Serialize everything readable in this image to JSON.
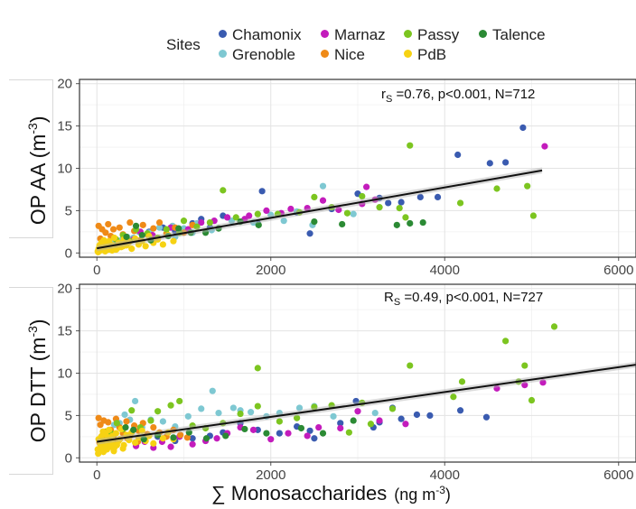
{
  "legend": {
    "title": "Sites",
    "items": [
      {
        "name": "Chamonix",
        "color": "#3a5bb0"
      },
      {
        "name": "Grenoble",
        "color": "#7ec8d2"
      },
      {
        "name": "Marnaz",
        "color": "#c31cbc"
      },
      {
        "name": "Nice",
        "color": "#ef8a17"
      },
      {
        "name": "Passy",
        "color": "#7cc520"
      },
      {
        "name": "PdB",
        "color": "#f6d213"
      },
      {
        "name": "Talence",
        "color": "#2b8a34"
      }
    ]
  },
  "chart_data": [
    {
      "type": "scatter",
      "panel": "top",
      "ylabel_main": "OP AA (m",
      "ylabel_sup": "-3",
      "ylabel_end": ")",
      "xlim": [
        -200,
        6200
      ],
      "ylim": [
        -0.5,
        20.5
      ],
      "xticks": [
        0,
        2000,
        4000,
        6000
      ],
      "yticks": [
        0,
        5,
        10,
        15,
        20
      ],
      "grid": true,
      "annotation": {
        "prefix": "r",
        "sub": "S",
        "text": " =0.76, p<0.001, N=712"
      },
      "fit_line": {
        "x": [
          0,
          5120
        ],
        "y": [
          0.55,
          9.75
        ]
      },
      "series": [
        {
          "name": "Chamonix",
          "x": [
            4900,
            4700,
            4520,
            4150,
            3920,
            3720,
            3500,
            3350,
            3250,
            3000,
            2700,
            2450,
            2300,
            1900,
            1850,
            1450,
            1300,
            1200,
            1100,
            900,
            760,
            600
          ],
          "y": [
            14.8,
            10.7,
            10.6,
            11.6,
            6.6,
            6.6,
            6.0,
            5.9,
            6.5,
            7.0,
            5.2,
            2.3,
            4.8,
            7.3,
            3.5,
            4.4,
            3.0,
            4.0,
            3.5,
            2.6,
            3.0,
            2.5
          ]
        },
        {
          "name": "Grenoble",
          "x": [
            2950,
            2600,
            2480,
            2300,
            2150,
            2000,
            1800,
            1550,
            1320,
            1150,
            1000,
            870,
            720,
            600,
            480,
            420,
            350,
            280,
            200,
            150,
            100,
            50,
            900,
            1100
          ],
          "y": [
            4.6,
            7.9,
            3.3,
            4.9,
            3.8,
            4.5,
            3.6,
            3.8,
            2.7,
            3.5,
            2.9,
            3.2,
            3.0,
            2.4,
            2.5,
            1.8,
            1.9,
            1.5,
            1.2,
            1.1,
            0.9,
            0.7,
            1.9,
            2.4
          ]
        },
        {
          "name": "Marnaz",
          "x": [
            5150,
            3200,
            3100,
            3050,
            2780,
            2600,
            2420,
            2230,
            2120,
            1950,
            1750,
            1700,
            1500,
            1350,
            1200,
            1050,
            850,
            640,
            500,
            420,
            300
          ],
          "y": [
            12.6,
            6.3,
            7.8,
            5.8,
            5.1,
            6.2,
            5.3,
            5.2,
            4.7,
            5.0,
            4.4,
            4.0,
            4.2,
            3.8,
            3.6,
            2.8,
            3.0,
            2.1,
            2.5,
            1.6,
            1.2
          ]
        },
        {
          "name": "Nice",
          "x": [
            20,
            40,
            60,
            80,
            100,
            130,
            160,
            190,
            220,
            260,
            300,
            340,
            380,
            430,
            480,
            530,
            580,
            650,
            720,
            800,
            900,
            1000,
            1100,
            60,
            120,
            240,
            360,
            500,
            700
          ],
          "y": [
            3.2,
            1.7,
            2.8,
            1.3,
            2.4,
            3.4,
            2.0,
            2.8,
            1.6,
            3.0,
            2.2,
            1.9,
            3.6,
            2.6,
            1.4,
            3.3,
            2.2,
            2.9,
            3.6,
            2.3,
            3.0,
            2.4,
            3.3,
            0.8,
            1.0,
            0.9,
            1.2,
            1.5,
            1.8
          ]
        },
        {
          "name": "Passy",
          "x": [
            3600,
            4950,
            5020,
            4600,
            4180,
            3550,
            3480,
            3250,
            3050,
            2880,
            2700,
            2500,
            2330,
            2080,
            1850,
            1600,
            1450,
            1300,
            1150,
            1000,
            950,
            800,
            700,
            580,
            450,
            380,
            300,
            220,
            160
          ],
          "y": [
            12.7,
            7.9,
            4.4,
            7.6,
            5.9,
            4.2,
            5.3,
            5.4,
            6.7,
            4.7,
            5.4,
            6.6,
            4.8,
            4.6,
            4.6,
            4.2,
            7.4,
            3.6,
            3.1,
            3.8,
            2.4,
            2.8,
            1.8,
            2.3,
            2.8,
            1.4,
            2.1,
            1.6,
            0.9
          ]
        },
        {
          "name": "PdB",
          "x": [
            10,
            20,
            30,
            40,
            50,
            60,
            70,
            80,
            90,
            100,
            110,
            120,
            140,
            160,
            180,
            200,
            220,
            250,
            280,
            310,
            340,
            370,
            400,
            440,
            480,
            520,
            560,
            600,
            650,
            700,
            760,
            820,
            880,
            15,
            35,
            55,
            75,
            95,
            115,
            135,
            155,
            175,
            195,
            230,
            265,
            300
          ],
          "y": [
            0.2,
            0.5,
            0.9,
            0.3,
            1.2,
            0.7,
            0.4,
            1.5,
            0.8,
            0.3,
            1.1,
            0.6,
            1.4,
            0.5,
            0.9,
            1.8,
            0.4,
            1.2,
            0.7,
            1.6,
            0.9,
            1.3,
            0.5,
            1.7,
            1.0,
            1.4,
            0.8,
            2.0,
            1.2,
            1.6,
            1.0,
            2.1,
            1.4,
            0.1,
            0.3,
            0.6,
            1.0,
            0.2,
            0.8,
            0.4,
            1.0,
            0.3,
            0.7,
            0.5,
            1.1,
            0.8
          ]
        },
        {
          "name": "Talence",
          "x": [
            3750,
            3600,
            3450,
            2820,
            2500,
            1860,
            1650,
            1400,
            1250,
            1080,
            940,
            820,
            620,
            520,
            450,
            340
          ],
          "y": [
            3.6,
            3.5,
            3.3,
            3.4,
            3.7,
            3.3,
            3.7,
            2.9,
            2.4,
            2.4,
            2.9,
            2.0,
            1.5,
            2.1,
            3.2,
            1.9
          ]
        }
      ]
    },
    {
      "type": "scatter",
      "panel": "bottom",
      "ylabel_main": "OP DTT (m",
      "ylabel_sup": "-3",
      "ylabel_end": ")",
      "xlabel_main": "∑ Monosaccharides",
      "xlabel_unit_main": "(ng m",
      "xlabel_unit_sup": "-3",
      "xlabel_unit_end": ")",
      "xlim": [
        -200,
        6200
      ],
      "ylim": [
        -0.5,
        20.5
      ],
      "xticks": [
        0,
        2000,
        4000,
        6000
      ],
      "yticks": [
        0,
        5,
        10,
        15,
        20
      ],
      "grid": true,
      "annotation": {
        "prefix": "R",
        "sub": "S",
        "text": " =0.49, p<0.001, N=727"
      },
      "fit_line": {
        "x": [
          0,
          6200
        ],
        "y": [
          1.9,
          11.0
        ]
      },
      "series": [
        {
          "name": "Chamonix",
          "x": [
            4480,
            4180,
            3830,
            3680,
            3500,
            3400,
            3250,
            3180,
            2980,
            2800,
            2500,
            2450,
            2300,
            2100,
            1850,
            1650,
            1450,
            1300,
            1100,
            900,
            700
          ],
          "y": [
            4.8,
            5.6,
            5.0,
            5.1,
            4.6,
            5.9,
            4.2,
            3.6,
            6.7,
            4.1,
            2.3,
            3.2,
            3.7,
            2.9,
            3.3,
            4.1,
            3.0,
            2.6,
            2.3,
            2.0,
            2.5
          ]
        },
        {
          "name": "Grenoble",
          "x": [
            3200,
            2720,
            2500,
            2330,
            2100,
            1950,
            1770,
            1570,
            1330,
            1200,
            1050,
            900,
            760,
            620,
            520,
            440,
            380,
            320,
            260,
            200,
            150,
            100,
            50,
            1400,
            1650
          ],
          "y": [
            5.3,
            4.9,
            6.1,
            5.9,
            5.3,
            4.9,
            5.4,
            5.9,
            7.9,
            5.8,
            4.9,
            3.7,
            4.3,
            4.5,
            3.6,
            6.7,
            4.5,
            5.1,
            4.1,
            3.9,
            3.1,
            2.6,
            2.3,
            5.3,
            5.6
          ]
        },
        {
          "name": "Marnaz",
          "x": [
            5130,
            4920,
            4600,
            3550,
            3250,
            3000,
            2800,
            2550,
            2420,
            2200,
            2000,
            1800,
            1650,
            1500,
            1380,
            1250,
            1100,
            950,
            850,
            750,
            650,
            550,
            450
          ],
          "y": [
            8.9,
            8.6,
            8.2,
            4.0,
            4.4,
            5.5,
            3.5,
            3.6,
            2.6,
            2.9,
            2.2,
            3.3,
            3.6,
            2.9,
            2.3,
            2.0,
            1.6,
            2.5,
            1.3,
            1.9,
            1.2,
            1.9,
            1.4
          ]
        },
        {
          "name": "Nice",
          "x": [
            20,
            40,
            60,
            80,
            100,
            130,
            160,
            190,
            220,
            260,
            300,
            340,
            380,
            430,
            480,
            530,
            580,
            650,
            720,
            800,
            880,
            960,
            1040,
            30,
            90,
            150,
            240,
            350,
            470
          ],
          "y": [
            4.7,
            3.9,
            2.6,
            4.4,
            3.1,
            4.2,
            3.3,
            2.4,
            4.6,
            3.6,
            2.9,
            4.3,
            2.6,
            3.8,
            3.2,
            4.1,
            2.8,
            3.6,
            3.0,
            2.5,
            3.3,
            2.7,
            2.4,
            1.8,
            2.2,
            1.6,
            2.0,
            2.3,
            1.9
          ]
        },
        {
          "name": "Passy",
          "x": [
            5260,
            4700,
            5000,
            4920,
            4850,
            4200,
            4100,
            3600,
            3400,
            3150,
            3050,
            2900,
            2700,
            2500,
            2300,
            2100,
            1850,
            1850,
            1650,
            1450,
            1250,
            1100,
            950,
            850,
            700,
            620,
            500,
            400,
            300,
            230,
            160,
            120
          ],
          "y": [
            15.5,
            13.8,
            6.8,
            10.9,
            9.0,
            9.0,
            7.2,
            10.9,
            5.8,
            4.0,
            6.5,
            3.0,
            6.2,
            6.0,
            4.7,
            4.3,
            10.6,
            6.1,
            5.2,
            4.1,
            3.5,
            3.8,
            6.7,
            6.2,
            5.5,
            4.4,
            3.6,
            5.6,
            3.4,
            4.1,
            2.9,
            3.1
          ]
        },
        {
          "name": "PdB",
          "x": [
            10,
            20,
            30,
            40,
            50,
            60,
            70,
            80,
            90,
            100,
            110,
            120,
            140,
            160,
            180,
            200,
            220,
            250,
            280,
            310,
            340,
            370,
            400,
            440,
            480,
            520,
            560,
            600,
            650,
            700,
            760,
            820,
            880,
            15,
            35,
            55,
            75,
            95,
            115,
            135,
            155,
            175,
            195,
            230,
            265,
            300
          ],
          "y": [
            1.0,
            2.2,
            0.8,
            1.6,
            2.5,
            1.3,
            3.1,
            1.9,
            0.9,
            2.8,
            1.4,
            2.2,
            3.3,
            1.7,
            2.6,
            1.2,
            2.9,
            2.0,
            3.4,
            1.5,
            2.7,
            2.1,
            3.0,
            1.8,
            2.4,
            3.2,
            2.0,
            2.6,
            1.7,
            2.8,
            2.3,
            3.0,
            2.2,
            0.5,
            1.1,
            1.8,
            0.7,
            2.0,
            1.0,
            2.4,
            1.3,
            1.9,
            0.8,
            1.5,
            2.2,
            1.1
          ]
        },
        {
          "name": "Talence",
          "x": [
            2950,
            2600,
            2350,
            1950,
            1700,
            1480,
            1260,
            1060,
            880,
            700,
            540,
            420,
            330
          ],
          "y": [
            4.4,
            2.9,
            3.5,
            2.9,
            3.4,
            2.6,
            2.3,
            3.0,
            2.4,
            2.7,
            2.2,
            3.3,
            3.6
          ]
        }
      ]
    }
  ]
}
